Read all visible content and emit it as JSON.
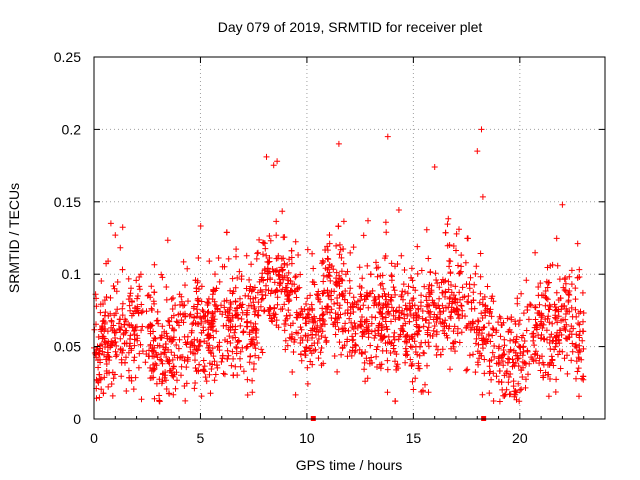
{
  "chart_data": {
    "type": "scatter",
    "title": "Day 079 of 2019, SRMTID for receiver plet",
    "xlabel": "GPS time / hours",
    "ylabel": "SRMTID / TECUs",
    "xlim": [
      0,
      24
    ],
    "ylim": [
      0,
      0.25
    ],
    "x_ticks": [
      0,
      5,
      10,
      15,
      20
    ],
    "y_ticks": [
      0,
      0.05,
      0.1,
      0.15,
      0.2,
      0.25
    ],
    "x_tick_labels": [
      "0",
      "5",
      "10",
      "15",
      "20"
    ],
    "y_tick_labels": [
      "0",
      "0.05",
      "0.1",
      "0.15",
      "0.2",
      "0.25"
    ],
    "grid": true,
    "marker": "+",
    "series": [
      {
        "name": "SRMTID",
        "color": "#ff0000",
        "profile_x": [
          0,
          0.5,
          1.0,
          1.5,
          2.0,
          2.5,
          3.0,
          3.5,
          4.0,
          4.5,
          5.0,
          5.5,
          6.0,
          6.5,
          7.0,
          7.5,
          8.0,
          8.5,
          9.0,
          9.5,
          10.0,
          10.5,
          11.0,
          11.5,
          12.0,
          12.5,
          13.0,
          13.5,
          14.0,
          14.5,
          15.0,
          15.5,
          16.0,
          16.5,
          17.0,
          17.5,
          18.0,
          18.5,
          19.0,
          19.5,
          20.0,
          20.5,
          21.0,
          21.5,
          22.0,
          22.5,
          23.0
        ],
        "profile_y": [
          0.05,
          0.055,
          0.06,
          0.058,
          0.055,
          0.05,
          0.04,
          0.045,
          0.055,
          0.06,
          0.065,
          0.068,
          0.07,
          0.068,
          0.065,
          0.062,
          0.095,
          0.09,
          0.085,
          0.07,
          0.06,
          0.06,
          0.085,
          0.08,
          0.075,
          0.07,
          0.068,
          0.07,
          0.072,
          0.07,
          0.065,
          0.068,
          0.072,
          0.08,
          0.085,
          0.082,
          0.07,
          0.055,
          0.045,
          0.042,
          0.045,
          0.05,
          0.055,
          0.06,
          0.065,
          0.07,
          0.05
        ],
        "spread": 0.018,
        "point_count": 2200,
        "peaks_x": [
          1.0,
          8.1,
          8.6,
          11.5,
          13.8,
          18.2,
          18.0,
          16.0,
          22.0
        ],
        "peaks_y": [
          0.127,
          0.181,
          0.178,
          0.19,
          0.195,
          0.2,
          0.185,
          0.174,
          0.148
        ]
      }
    ],
    "gap_markers_x": [
      10.3,
      18.3
    ]
  }
}
